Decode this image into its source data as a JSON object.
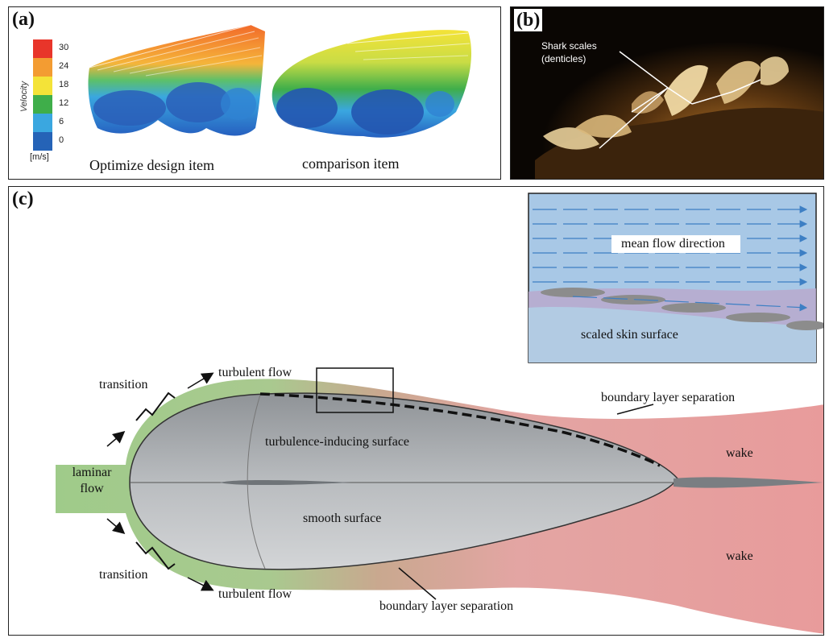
{
  "panel_a": {
    "label": "(a)",
    "legend_title": "Velocity",
    "legend_unit": "[m/s]",
    "legend_ticks": [
      "30",
      "24",
      "18",
      "12",
      "6",
      "0"
    ],
    "legend_colors": [
      "#e8352a",
      "#f39c32",
      "#f4e338",
      "#3fae4a",
      "#3aa7e0",
      "#2563b7"
    ],
    "caption_left": "Optimize design item",
    "caption_right": "comparison item"
  },
  "panel_b": {
    "label": "(b)",
    "annotation_line1": "Shark scales",
    "annotation_line2": "(denticles)"
  },
  "panel_c": {
    "label": "(c)",
    "inset_flow_label": "mean flow direction",
    "inset_surface_label": "scaled skin surface",
    "laminar_line1": "laminar",
    "laminar_line2": "flow",
    "transition_top": "transition",
    "transition_bottom": "transition",
    "turbulent_top": "turbulent flow",
    "turbulent_bottom": "turbulent flow",
    "turbulence_surface": "turbulence-inducing surface",
    "smooth_surface": "smooth surface",
    "bl_sep_top": "boundary layer separation",
    "bl_sep_bottom": "boundary layer separation",
    "wake_top": "wake",
    "wake_bottom": "wake"
  }
}
